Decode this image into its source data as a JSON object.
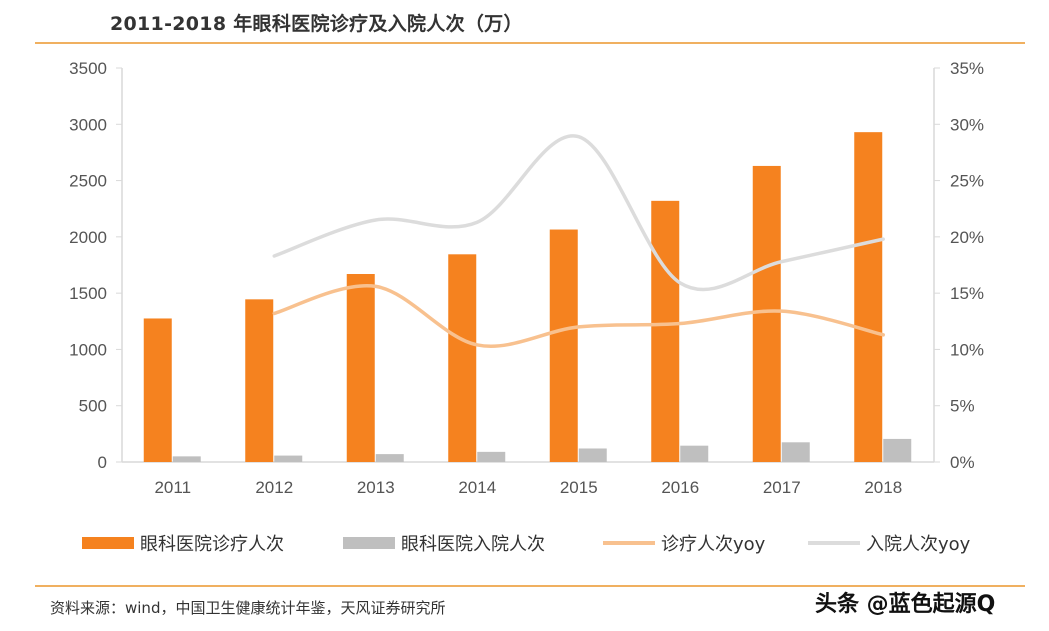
{
  "title": "2011-2018 年眼科医院诊疗及入院人次（万）",
  "source": "资料来源：wind，中国卫生健康统计年鉴，天风证券研究所",
  "watermark": "头条 @蓝色起源Q",
  "chart_data": {
    "type": "bar",
    "title": "2011-2018 年眼科医院诊疗及入院人次（万）",
    "categories": [
      "2011",
      "2012",
      "2013",
      "2014",
      "2015",
      "2016",
      "2017",
      "2018"
    ],
    "ylim": [
      0,
      3500
    ],
    "y_ticks": [
      "0",
      "500",
      "1000",
      "1500",
      "2000",
      "2500",
      "3000",
      "3500"
    ],
    "y2lim": [
      0,
      35
    ],
    "y2_ticks": [
      "0%",
      "5%",
      "10%",
      "15%",
      "20%",
      "25%",
      "30%",
      "35%"
    ],
    "grid": false,
    "legend_position": "bottom",
    "series": [
      {
        "name": "眼科医院诊疗人次",
        "type": "bar",
        "axis": "left",
        "color": "#f5821f",
        "values": [
          1275,
          1445,
          1670,
          1845,
          2065,
          2320,
          2630,
          2930
        ]
      },
      {
        "name": "眼科医院入院人次",
        "type": "bar",
        "axis": "left",
        "color": "#bfbfbf",
        "values": [
          50,
          57,
          70,
          90,
          120,
          145,
          175,
          205
        ]
      },
      {
        "name": "诊疗人次yoy",
        "type": "line",
        "axis": "right",
        "color": "#f8c18f",
        "values": [
          null,
          13.2,
          15.6,
          10.4,
          12.0,
          12.3,
          13.4,
          11.3
        ]
      },
      {
        "name": "入院人次yoy",
        "type": "line",
        "axis": "right",
        "color": "#dcdcdc",
        "values": [
          null,
          18.3,
          21.5,
          21.3,
          28.9,
          15.9,
          17.8,
          19.8
        ]
      }
    ]
  }
}
